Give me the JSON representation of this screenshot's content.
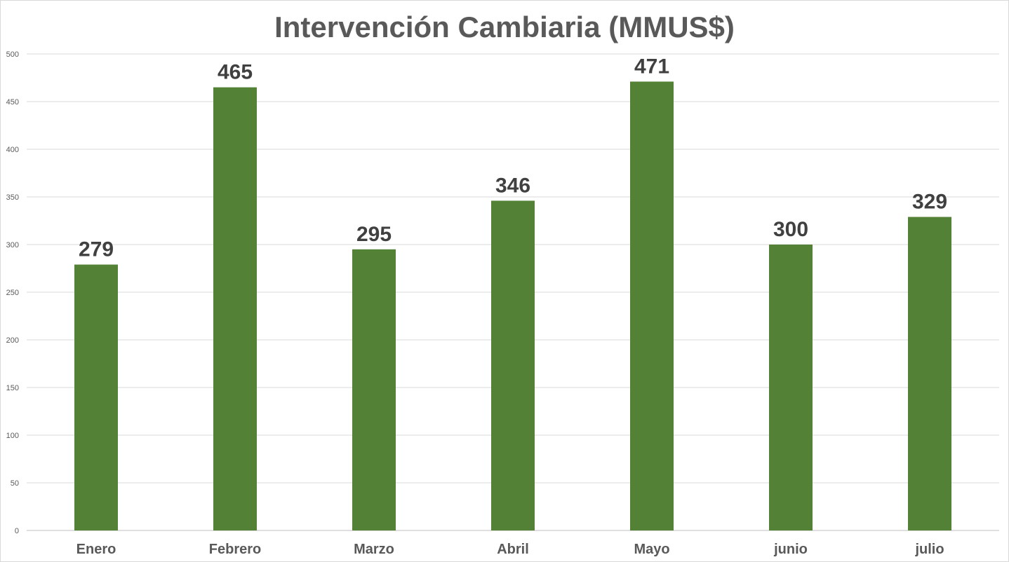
{
  "chart_data": {
    "type": "bar",
    "title": "Intervención Cambiaria (MMUS$)",
    "xlabel": "",
    "ylabel": "",
    "categories": [
      "Enero",
      "Febrero",
      "Marzo",
      "Abril",
      "Mayo",
      "junio",
      "julio"
    ],
    "values": [
      279,
      465,
      295,
      346,
      471,
      300,
      329
    ],
    "ylim": [
      0,
      500
    ],
    "yticks": [
      0,
      50,
      100,
      150,
      200,
      250,
      300,
      350,
      400,
      450,
      500
    ],
    "bar_color": "#538135",
    "grid": true,
    "legend": "none",
    "data_labels": true
  }
}
